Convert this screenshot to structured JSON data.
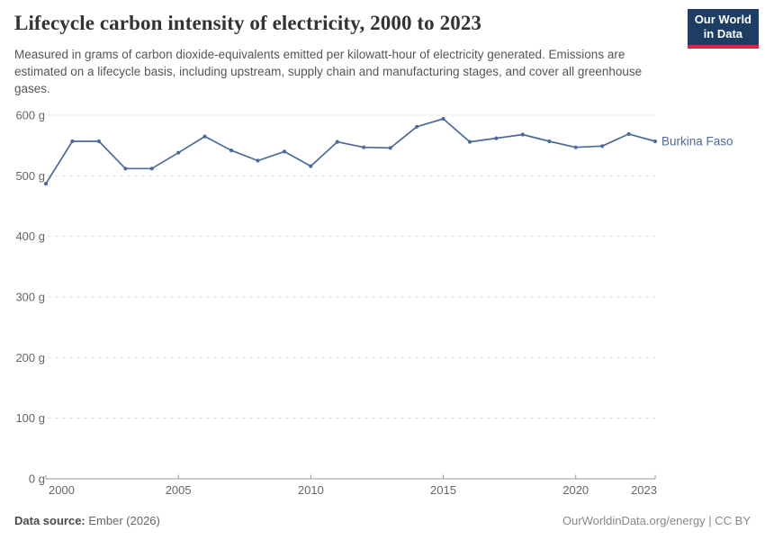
{
  "header": {
    "title": "Lifecycle carbon intensity of electricity, 2000 to 2023",
    "subtitle": "Measured in grams of carbon dioxide-equivalents emitted per kilowatt-hour of electricity generated. Emissions are estimated on a lifecycle basis, including upstream, supply chain and manufacturing stages, and cover all greenhouse gases."
  },
  "logo": {
    "line1": "Our World",
    "line2": "in Data",
    "bg_color": "#1d3d63",
    "accent_color": "#e0233c"
  },
  "chart_data": {
    "type": "line",
    "title": "Lifecycle carbon intensity of electricity, 2000 to 2023",
    "ylabel": "grams of CO2-equivalents per kilowatt-hour",
    "xlim": [
      2000,
      2023
    ],
    "ylim": [
      0,
      600
    ],
    "grid": true,
    "legend_position": "end-of-line",
    "x_ticks": [
      2000,
      2005,
      2010,
      2015,
      2020,
      2023
    ],
    "y_ticks": [
      0,
      100,
      200,
      300,
      400,
      500,
      600
    ],
    "y_tick_suffix": " g",
    "categories": [
      2000,
      2001,
      2002,
      2003,
      2004,
      2005,
      2006,
      2007,
      2008,
      2009,
      2010,
      2011,
      2012,
      2013,
      2014,
      2015,
      2016,
      2017,
      2018,
      2019,
      2020,
      2021,
      2022,
      2023
    ],
    "series": [
      {
        "name": "Burkina Faso",
        "color": "#4c6a9c",
        "values": [
          487,
          557,
          557,
          512,
          512,
          538,
          565,
          542,
          525,
          540,
          516,
          556,
          547,
          546,
          581,
          594,
          556,
          562,
          568,
          557,
          547,
          549,
          569,
          557
        ]
      }
    ]
  },
  "colors": {
    "line": "#4c6a9c",
    "gridline": "#dddddd",
    "axis": "#999999",
    "tick_label": "#666666"
  },
  "footer": {
    "source_label": "Data source:",
    "source_value": "Ember (2026)",
    "credit": "OurWorldinData.org/energy | CC BY"
  }
}
